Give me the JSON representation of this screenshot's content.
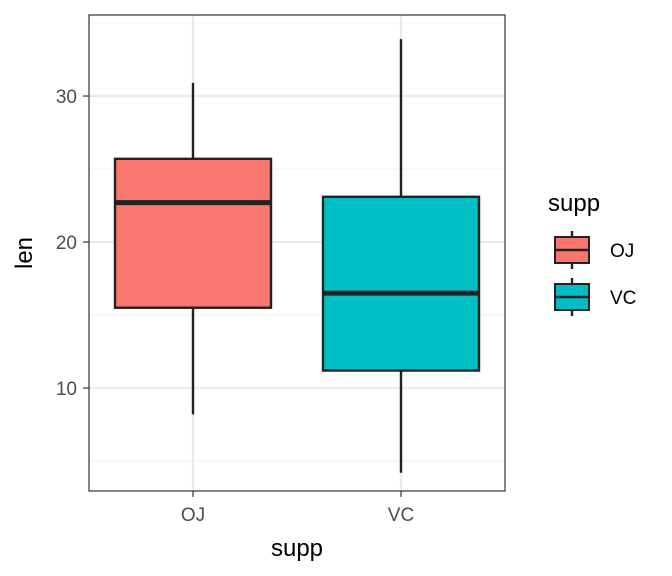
{
  "chart_data": {
    "type": "boxplot",
    "title": "",
    "xlabel": "supp",
    "ylabel": "len",
    "categories": [
      "OJ",
      "VC"
    ],
    "ylim": [
      2.95,
      35.55
    ],
    "yticks": [
      10,
      20,
      30
    ],
    "grid": true,
    "boxes": [
      {
        "category": "OJ",
        "fill": "#F8766D",
        "whisker_low": 8.2,
        "q1": 15.5,
        "median": 22.7,
        "q3": 25.7,
        "whisker_high": 30.9
      },
      {
        "category": "VC",
        "fill": "#00BFC4",
        "whisker_low": 4.2,
        "q1": 11.2,
        "median": 16.5,
        "q3": 23.1,
        "whisker_high": 33.9
      }
    ],
    "legend": {
      "title": "supp",
      "position": "right",
      "entries": [
        {
          "label": "OJ",
          "fill": "#F8766D"
        },
        {
          "label": "VC",
          "fill": "#00BFC4"
        }
      ]
    }
  },
  "colors": {
    "panel_border": "#333333",
    "grid_major": "#EBEBEB",
    "grid_minor": "#F2F2F2",
    "box_line": "#222222",
    "tick_text": "#4d4d4d"
  }
}
